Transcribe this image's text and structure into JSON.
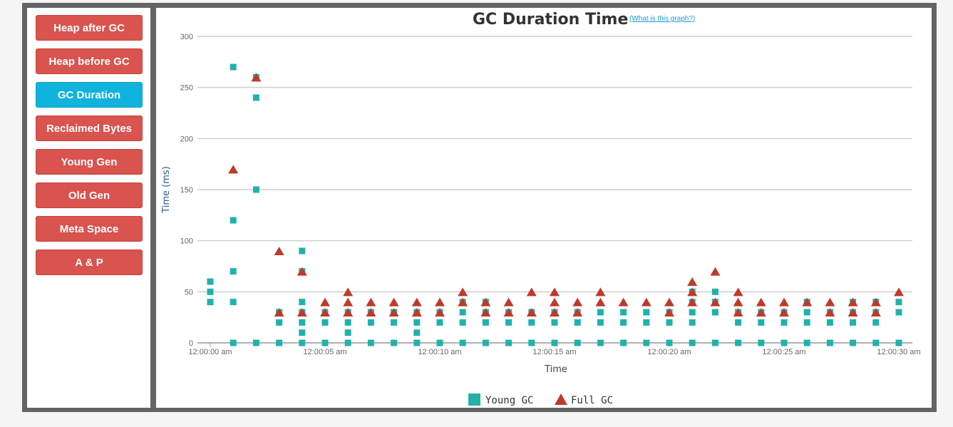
{
  "sidebar": {
    "items": [
      {
        "label": "Heap after GC",
        "active": false
      },
      {
        "label": "Heap before GC",
        "active": false
      },
      {
        "label": "GC Duration",
        "active": true
      },
      {
        "label": "Reclaimed Bytes",
        "active": false
      },
      {
        "label": "Young Gen",
        "active": false
      },
      {
        "label": "Old Gen",
        "active": false
      },
      {
        "label": "Meta Space",
        "active": false
      },
      {
        "label": "A & P",
        "active": false
      }
    ]
  },
  "header": {
    "title": "GC Duration Time",
    "help_link": "(What is this graph?)"
  },
  "colors": {
    "active_button": "#0fb3dd",
    "inactive_button": "#d9534f",
    "young_gc": "#20b2aa",
    "full_gc": "#c0392b",
    "frame": "#646464"
  },
  "chart_data": {
    "type": "scatter",
    "title": "GC Duration Time",
    "xlabel": "Time",
    "ylabel": "Time (ms)",
    "ylim": [
      0,
      300
    ],
    "yticks": [
      0,
      50,
      100,
      150,
      200,
      250,
      300
    ],
    "xlim": [
      "12:00:00 am",
      "12:00:30 am"
    ],
    "xticks": [
      "12:00:00 am",
      "12:00:05 am",
      "12:00:10 am",
      "12:00:15 am",
      "12:00:20 am",
      "12:00:25 am",
      "12:00:30 am"
    ],
    "grid": true,
    "legend": "bottom-center",
    "series": [
      {
        "name": "Young GC",
        "marker": "square",
        "color": "#20b2aa",
        "points": [
          [
            "12:00:00 am",
            60
          ],
          [
            "12:00:00 am",
            50
          ],
          [
            "12:00:00 am",
            40
          ],
          [
            "12:00:01 am",
            270
          ],
          [
            "12:00:01 am",
            120
          ],
          [
            "12:00:01 am",
            70
          ],
          [
            "12:00:01 am",
            40
          ],
          [
            "12:00:01 am",
            0
          ],
          [
            "12:00:02 am",
            260
          ],
          [
            "12:00:02 am",
            240
          ],
          [
            "12:00:02 am",
            150
          ],
          [
            "12:00:02 am",
            0
          ],
          [
            "12:00:03 am",
            30
          ],
          [
            "12:00:03 am",
            20
          ],
          [
            "12:00:03 am",
            0
          ],
          [
            "12:00:04 am",
            90
          ],
          [
            "12:00:04 am",
            70
          ],
          [
            "12:00:04 am",
            40
          ],
          [
            "12:00:04 am",
            30
          ],
          [
            "12:00:04 am",
            20
          ],
          [
            "12:00:04 am",
            10
          ],
          [
            "12:00:04 am",
            0
          ],
          [
            "12:00:05 am",
            30
          ],
          [
            "12:00:05 am",
            20
          ],
          [
            "12:00:05 am",
            0
          ],
          [
            "12:00:06 am",
            30
          ],
          [
            "12:00:06 am",
            20
          ],
          [
            "12:00:06 am",
            10
          ],
          [
            "12:00:06 am",
            0
          ],
          [
            "12:00:07 am",
            30
          ],
          [
            "12:00:07 am",
            20
          ],
          [
            "12:00:07 am",
            0
          ],
          [
            "12:00:08 am",
            30
          ],
          [
            "12:00:08 am",
            20
          ],
          [
            "12:00:08 am",
            0
          ],
          [
            "12:00:09 am",
            30
          ],
          [
            "12:00:09 am",
            20
          ],
          [
            "12:00:09 am",
            10
          ],
          [
            "12:00:09 am",
            0
          ],
          [
            "12:00:10 am",
            30
          ],
          [
            "12:00:10 am",
            20
          ],
          [
            "12:00:10 am",
            0
          ],
          [
            "12:00:11 am",
            40
          ],
          [
            "12:00:11 am",
            30
          ],
          [
            "12:00:11 am",
            20
          ],
          [
            "12:00:11 am",
            0
          ],
          [
            "12:00:12 am",
            40
          ],
          [
            "12:00:12 am",
            30
          ],
          [
            "12:00:12 am",
            20
          ],
          [
            "12:00:12 am",
            0
          ],
          [
            "12:00:13 am",
            30
          ],
          [
            "12:00:13 am",
            20
          ],
          [
            "12:00:13 am",
            0
          ],
          [
            "12:00:14 am",
            30
          ],
          [
            "12:00:14 am",
            20
          ],
          [
            "12:00:14 am",
            0
          ],
          [
            "12:00:15 am",
            30
          ],
          [
            "12:00:15 am",
            20
          ],
          [
            "12:00:15 am",
            0
          ],
          [
            "12:00:16 am",
            30
          ],
          [
            "12:00:16 am",
            20
          ],
          [
            "12:00:16 am",
            0
          ],
          [
            "12:00:17 am",
            30
          ],
          [
            "12:00:17 am",
            20
          ],
          [
            "12:00:17 am",
            0
          ],
          [
            "12:00:18 am",
            30
          ],
          [
            "12:00:18 am",
            20
          ],
          [
            "12:00:18 am",
            0
          ],
          [
            "12:00:19 am",
            30
          ],
          [
            "12:00:19 am",
            20
          ],
          [
            "12:00:19 am",
            0
          ],
          [
            "12:00:20 am",
            30
          ],
          [
            "12:00:20 am",
            20
          ],
          [
            "12:00:20 am",
            0
          ],
          [
            "12:00:21 am",
            50
          ],
          [
            "12:00:21 am",
            40
          ],
          [
            "12:00:21 am",
            30
          ],
          [
            "12:00:21 am",
            20
          ],
          [
            "12:00:21 am",
            0
          ],
          [
            "12:00:22 am",
            50
          ],
          [
            "12:00:22 am",
            40
          ],
          [
            "12:00:22 am",
            30
          ],
          [
            "12:00:22 am",
            0
          ],
          [
            "12:00:23 am",
            30
          ],
          [
            "12:00:23 am",
            20
          ],
          [
            "12:00:23 am",
            0
          ],
          [
            "12:00:24 am",
            30
          ],
          [
            "12:00:24 am",
            20
          ],
          [
            "12:00:24 am",
            0
          ],
          [
            "12:00:25 am",
            30
          ],
          [
            "12:00:25 am",
            20
          ],
          [
            "12:00:25 am",
            0
          ],
          [
            "12:00:26 am",
            40
          ],
          [
            "12:00:26 am",
            30
          ],
          [
            "12:00:26 am",
            20
          ],
          [
            "12:00:26 am",
            0
          ],
          [
            "12:00:27 am",
            30
          ],
          [
            "12:00:27 am",
            20
          ],
          [
            "12:00:27 am",
            0
          ],
          [
            "12:00:28 am",
            40
          ],
          [
            "12:00:28 am",
            30
          ],
          [
            "12:00:28 am",
            20
          ],
          [
            "12:00:28 am",
            0
          ],
          [
            "12:00:29 am",
            40
          ],
          [
            "12:00:29 am",
            30
          ],
          [
            "12:00:29 am",
            20
          ],
          [
            "12:00:29 am",
            0
          ],
          [
            "12:00:30 am",
            40
          ],
          [
            "12:00:30 am",
            30
          ],
          [
            "12:00:30 am",
            0
          ]
        ]
      },
      {
        "name": "Full GC",
        "marker": "triangle",
        "color": "#c0392b",
        "points": [
          [
            "12:00:01 am",
            170
          ],
          [
            "12:00:02 am",
            260
          ],
          [
            "12:00:03 am",
            90
          ],
          [
            "12:00:03 am",
            30
          ],
          [
            "12:00:04 am",
            70
          ],
          [
            "12:00:04 am",
            30
          ],
          [
            "12:00:05 am",
            40
          ],
          [
            "12:00:05 am",
            30
          ],
          [
            "12:00:06 am",
            50
          ],
          [
            "12:00:06 am",
            40
          ],
          [
            "12:00:06 am",
            30
          ],
          [
            "12:00:07 am",
            40
          ],
          [
            "12:00:07 am",
            30
          ],
          [
            "12:00:08 am",
            40
          ],
          [
            "12:00:08 am",
            30
          ],
          [
            "12:00:09 am",
            40
          ],
          [
            "12:00:09 am",
            30
          ],
          [
            "12:00:10 am",
            40
          ],
          [
            "12:00:10 am",
            30
          ],
          [
            "12:00:11 am",
            50
          ],
          [
            "12:00:11 am",
            40
          ],
          [
            "12:00:12 am",
            40
          ],
          [
            "12:00:12 am",
            30
          ],
          [
            "12:00:13 am",
            40
          ],
          [
            "12:00:13 am",
            30
          ],
          [
            "12:00:14 am",
            50
          ],
          [
            "12:00:14 am",
            30
          ],
          [
            "12:00:15 am",
            50
          ],
          [
            "12:00:15 am",
            40
          ],
          [
            "12:00:15 am",
            30
          ],
          [
            "12:00:16 am",
            40
          ],
          [
            "12:00:16 am",
            30
          ],
          [
            "12:00:17 am",
            50
          ],
          [
            "12:00:17 am",
            40
          ],
          [
            "12:00:18 am",
            40
          ],
          [
            "12:00:19 am",
            40
          ],
          [
            "12:00:20 am",
            40
          ],
          [
            "12:00:20 am",
            30
          ],
          [
            "12:00:21 am",
            60
          ],
          [
            "12:00:21 am",
            50
          ],
          [
            "12:00:21 am",
            40
          ],
          [
            "12:00:22 am",
            70
          ],
          [
            "12:00:22 am",
            40
          ],
          [
            "12:00:23 am",
            50
          ],
          [
            "12:00:23 am",
            40
          ],
          [
            "12:00:23 am",
            30
          ],
          [
            "12:00:24 am",
            40
          ],
          [
            "12:00:24 am",
            30
          ],
          [
            "12:00:25 am",
            40
          ],
          [
            "12:00:25 am",
            30
          ],
          [
            "12:00:26 am",
            40
          ],
          [
            "12:00:27 am",
            40
          ],
          [
            "12:00:27 am",
            30
          ],
          [
            "12:00:28 am",
            40
          ],
          [
            "12:00:28 am",
            30
          ],
          [
            "12:00:29 am",
            40
          ],
          [
            "12:00:29 am",
            30
          ],
          [
            "12:00:30 am",
            50
          ]
        ]
      }
    ]
  }
}
